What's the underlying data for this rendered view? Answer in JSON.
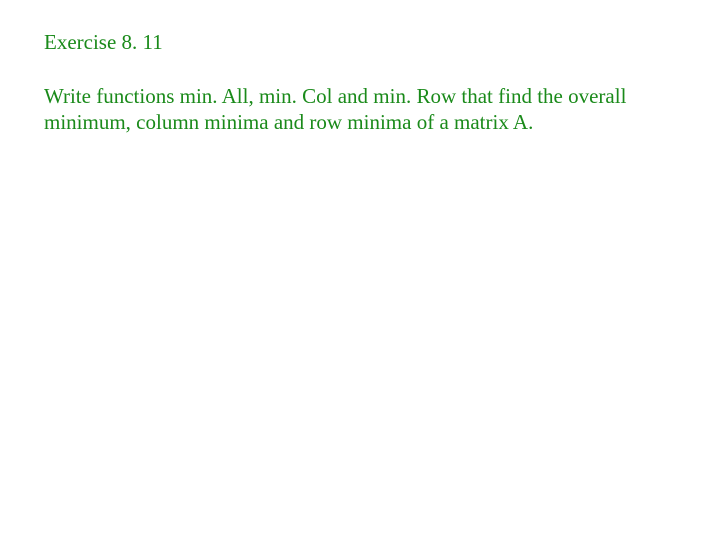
{
  "slide": {
    "title": "Exercise 8. 11",
    "body": "Write functions min. All, min. Col and min. Row that find the overall minimum, column minima and row minima of a matrix A.",
    "text_color": "#1a8a1a",
    "background_color": "#ffffff",
    "title_fontsize": 21,
    "body_fontsize": 21,
    "font_family": "Georgia, serif"
  }
}
